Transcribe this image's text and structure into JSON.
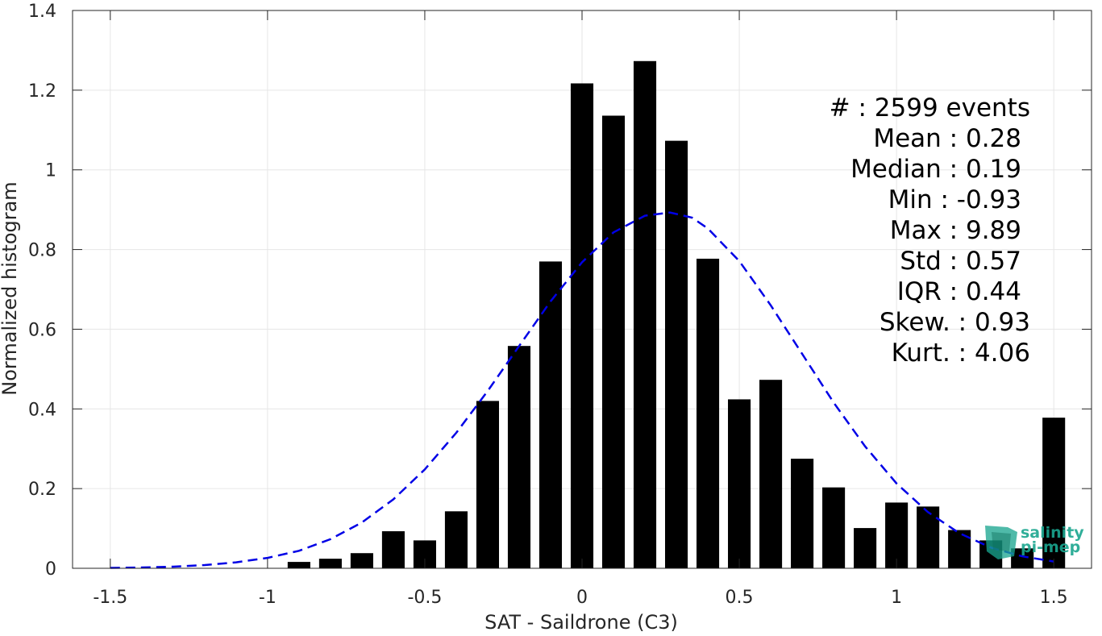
{
  "chart_data": {
    "type": "bar",
    "xlabel": "SAT - Saildrone (C3)",
    "ylabel": "Normalized histogram",
    "xlim": [
      -1.62,
      1.62
    ],
    "ylim": [
      0,
      1.4
    ],
    "xticks": [
      -1.5,
      -1,
      -0.5,
      0,
      0.5,
      1,
      1.5
    ],
    "xtick_labels": [
      "-1.5",
      "-1",
      "-0.5",
      "0",
      "0.5",
      "1",
      "1.5"
    ],
    "yticks": [
      0,
      0.2,
      0.4,
      0.6,
      0.8,
      1,
      1.2,
      1.4
    ],
    "ytick_labels": [
      "0",
      "0.2",
      "0.4",
      "0.6",
      "0.8",
      "1",
      "1.2",
      "1.4"
    ],
    "grid": true,
    "bin_centers": [
      -0.9,
      -0.8,
      -0.7,
      -0.6,
      -0.5,
      -0.4,
      -0.3,
      -0.2,
      -0.1,
      0.0,
      0.1,
      0.2,
      0.3,
      0.4,
      0.5,
      0.6,
      0.7,
      0.8,
      0.9,
      1.0,
      1.1,
      1.2,
      1.3,
      1.4,
      1.5
    ],
    "values": [
      0.016,
      0.024,
      0.038,
      0.093,
      0.07,
      0.143,
      0.42,
      0.558,
      0.77,
      1.217,
      1.136,
      1.273,
      1.073,
      0.777,
      0.424,
      0.473,
      0.275,
      0.203,
      0.101,
      0.165,
      0.155,
      0.096,
      0.07,
      0.05,
      0.378
    ],
    "bar_color": "#000000",
    "fit_curve": {
      "style": "dashed",
      "color": "#0000e6",
      "x": [
        -1.5,
        -1.4,
        -1.3,
        -1.2,
        -1.1,
        -1.0,
        -0.9,
        -0.8,
        -0.7,
        -0.6,
        -0.5,
        -0.4,
        -0.3,
        -0.2,
        -0.1,
        0.0,
        0.1,
        0.2,
        0.28,
        0.35,
        0.4,
        0.5,
        0.6,
        0.7,
        0.8,
        0.9,
        1.0,
        1.1,
        1.2,
        1.3,
        1.4,
        1.5
      ],
      "y": [
        0.001,
        0.002,
        0.004,
        0.008,
        0.015,
        0.026,
        0.044,
        0.073,
        0.115,
        0.173,
        0.248,
        0.34,
        0.445,
        0.558,
        0.67,
        0.768,
        0.843,
        0.885,
        0.893,
        0.88,
        0.853,
        0.771,
        0.66,
        0.538,
        0.416,
        0.306,
        0.213,
        0.141,
        0.088,
        0.052,
        0.03,
        0.017
      ]
    },
    "stats": [
      {
        "label": "#  : 2599 events"
      },
      {
        "label": "Mean : 0.28"
      },
      {
        "label": "Median : 0.19"
      },
      {
        "label": "Min : -0.93"
      },
      {
        "label": "Max : 9.89"
      },
      {
        "label": "Std : 0.57"
      },
      {
        "label": "IQR : 0.44"
      },
      {
        "label": "Skew. : 0.93"
      },
      {
        "label": "Kurt. : 4.06"
      }
    ],
    "logo": {
      "line1": "salinity",
      "line2": "pi-mep",
      "color": "#1aa68f"
    }
  }
}
